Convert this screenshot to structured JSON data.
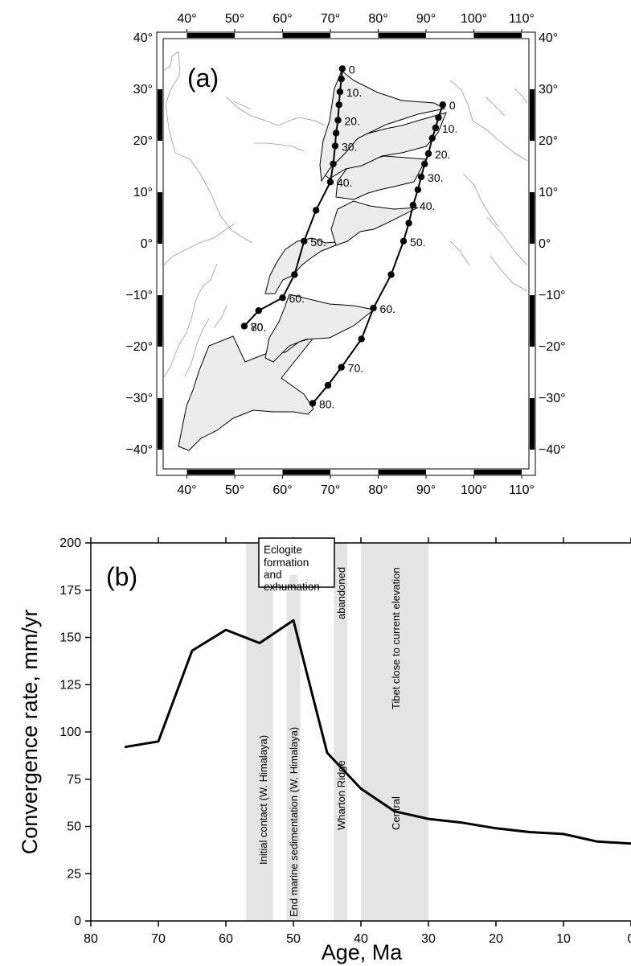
{
  "chart_data": [
    {
      "type": "map",
      "panel_label": "(a)",
      "lon_ticks": [
        "40°",
        "50°",
        "60°",
        "70°",
        "80°",
        "90°",
        "100°",
        "110°"
      ],
      "lat_ticks": [
        "40°",
        "30°",
        "20°",
        "10°",
        "0°",
        "−10°",
        "−20°",
        "−30°",
        "−40°"
      ],
      "lon_range": [
        35,
        111
      ],
      "lat_range": [
        -42,
        41
      ],
      "series": [
        {
          "track": "west",
          "ages": [
            "0",
            "10.",
            "20.",
            "30.",
            "40.",
            "50.",
            "60.",
            "70.",
            "80."
          ],
          "points": [
            {
              "lon": 72.5,
              "lat": 34,
              "age": 0
            },
            {
              "lon": 72.3,
              "lat": 32,
              "age": 5
            },
            {
              "lon": 72.0,
              "lat": 29.5,
              "age": 10
            },
            {
              "lon": 71.8,
              "lat": 27,
              "age": 15
            },
            {
              "lon": 71.6,
              "lat": 24,
              "age": 20
            },
            {
              "lon": 71.2,
              "lat": 21.5,
              "age": 25
            },
            {
              "lon": 71.0,
              "lat": 19,
              "age": 30
            },
            {
              "lon": 70.6,
              "lat": 15.5,
              "age": 35
            },
            {
              "lon": 70.0,
              "lat": 12,
              "age": 40
            },
            {
              "lon": 67.0,
              "lat": 6.5,
              "age": 45
            },
            {
              "lon": 64.5,
              "lat": 0.5,
              "age": 50
            },
            {
              "lon": 62.5,
              "lat": -6,
              "age": 55
            },
            {
              "lon": 60.0,
              "lat": -10.5,
              "age": 60
            },
            {
              "lon": 55.0,
              "lat": -13,
              "age": 65
            },
            {
              "lon": 52.0,
              "lat": -16,
              "age": 70
            }
          ],
          "label_positions": [
            0,
            10,
            20,
            30,
            40,
            50,
            60,
            70,
            80
          ]
        },
        {
          "track": "east",
          "ages": [
            "0",
            "10.",
            "20.",
            "30.",
            "40.",
            "50.",
            "60.",
            "70.",
            "80."
          ],
          "points": [
            {
              "lon": 93.5,
              "lat": 27,
              "age": 0
            },
            {
              "lon": 92.6,
              "lat": 24.5,
              "age": 5
            },
            {
              "lon": 92.0,
              "lat": 22.5,
              "age": 10
            },
            {
              "lon": 91.3,
              "lat": 20.5,
              "age": 15
            },
            {
              "lon": 90.5,
              "lat": 17.5,
              "age": 20
            },
            {
              "lon": 89.7,
              "lat": 15.5,
              "age": 25
            },
            {
              "lon": 89.0,
              "lat": 13,
              "age": 30
            },
            {
              "lon": 88.3,
              "lat": 10.5,
              "age": 35
            },
            {
              "lon": 87.3,
              "lat": 7.5,
              "age": 40
            },
            {
              "lon": 86.4,
              "lat": 4,
              "age": 45
            },
            {
              "lon": 85.3,
              "lat": 0.5,
              "age": 50
            },
            {
              "lon": 82.7,
              "lat": -6,
              "age": 55
            },
            {
              "lon": 79.0,
              "lat": -12.5,
              "age": 60
            },
            {
              "lon": 76.5,
              "lat": -18.5,
              "age": 65
            },
            {
              "lon": 72.3,
              "lat": -24,
              "age": 70
            },
            {
              "lon": 69.5,
              "lat": -27.5,
              "age": 75
            },
            {
              "lon": 66.3,
              "lat": -31,
              "age": 80
            }
          ]
        }
      ]
    },
    {
      "type": "line",
      "panel_label": "(b)",
      "xlabel": "Age, Ma",
      "ylabel": "Convergence rate, mm/yr",
      "xlim": [
        80,
        0
      ],
      "ylim": [
        0,
        200
      ],
      "x_ticks": [
        "80",
        "70",
        "60",
        "50",
        "40",
        "30",
        "20",
        "10",
        "0"
      ],
      "y_ticks": [
        "0",
        "25",
        "50",
        "75",
        "100",
        "125",
        "150",
        "175",
        "200"
      ],
      "x": [
        75,
        70,
        65,
        60,
        55,
        50,
        45,
        40,
        35,
        30,
        25,
        20,
        15,
        10,
        5,
        0
      ],
      "values": [
        92,
        95,
        143,
        154,
        147,
        159,
        89,
        70,
        58,
        54,
        52,
        49,
        47,
        46,
        42,
        41
      ],
      "shaded_bands": [
        {
          "from": 57,
          "to": 53,
          "label": "Initial contact (W. Himalaya)"
        },
        {
          "from": 51,
          "to": 49,
          "label": "End marine sedimentation (W. Himalaya)"
        },
        {
          "from": 44,
          "to": 42,
          "label": "Wharton Ridge abandoned"
        },
        {
          "from": 40,
          "to": 30,
          "label": "Central Tibet close to current elevation"
        }
      ],
      "annotations": {
        "band1": "Initial contact (W. Himalaya)",
        "band2": "End marine sedimentation (W. Himalaya)",
        "band3_top": "abandoned",
        "band3_bottom": "Wharton Ridge",
        "band4_top": "Tibet close to current elevation",
        "band4_bottom": "Central",
        "eclogite_line1": "Eclogite",
        "eclogite_line2": "formation",
        "eclogite_line3": "and",
        "eclogite_line4": "exhumation"
      }
    }
  ]
}
